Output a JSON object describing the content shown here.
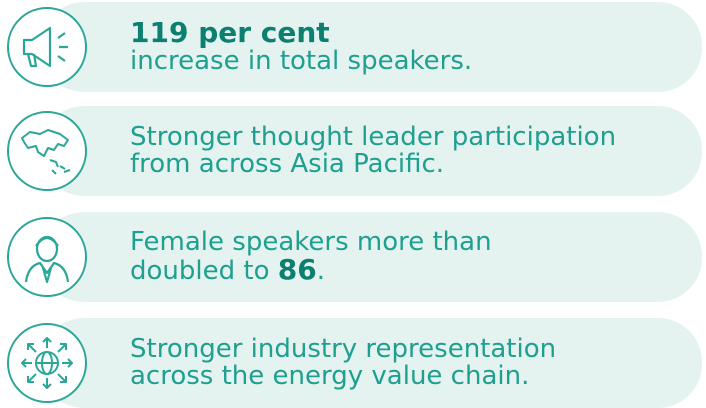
{
  "items": [
    {
      "lines": [
        [
          {
            "text": "119 per cent",
            "bold": true
          }
        ],
        [
          {
            "text": "increase in total speakers."
          }
        ]
      ]
    },
    {
      "lines": [
        [
          {
            "text": "Stronger thought leader participation"
          }
        ],
        [
          {
            "text": "from across Asia Pacific."
          }
        ]
      ]
    },
    {
      "lines": [
        [
          {
            "text": "Female speakers more than"
          }
        ],
        [
          {
            "text": "doubled to "
          },
          {
            "text": "86",
            "bold": true
          },
          {
            "text": "."
          }
        ]
      ]
    },
    {
      "lines": [
        [
          {
            "text": "Stronger industry representation"
          }
        ],
        [
          {
            "text": "across the energy value chain."
          }
        ]
      ]
    }
  ]
}
